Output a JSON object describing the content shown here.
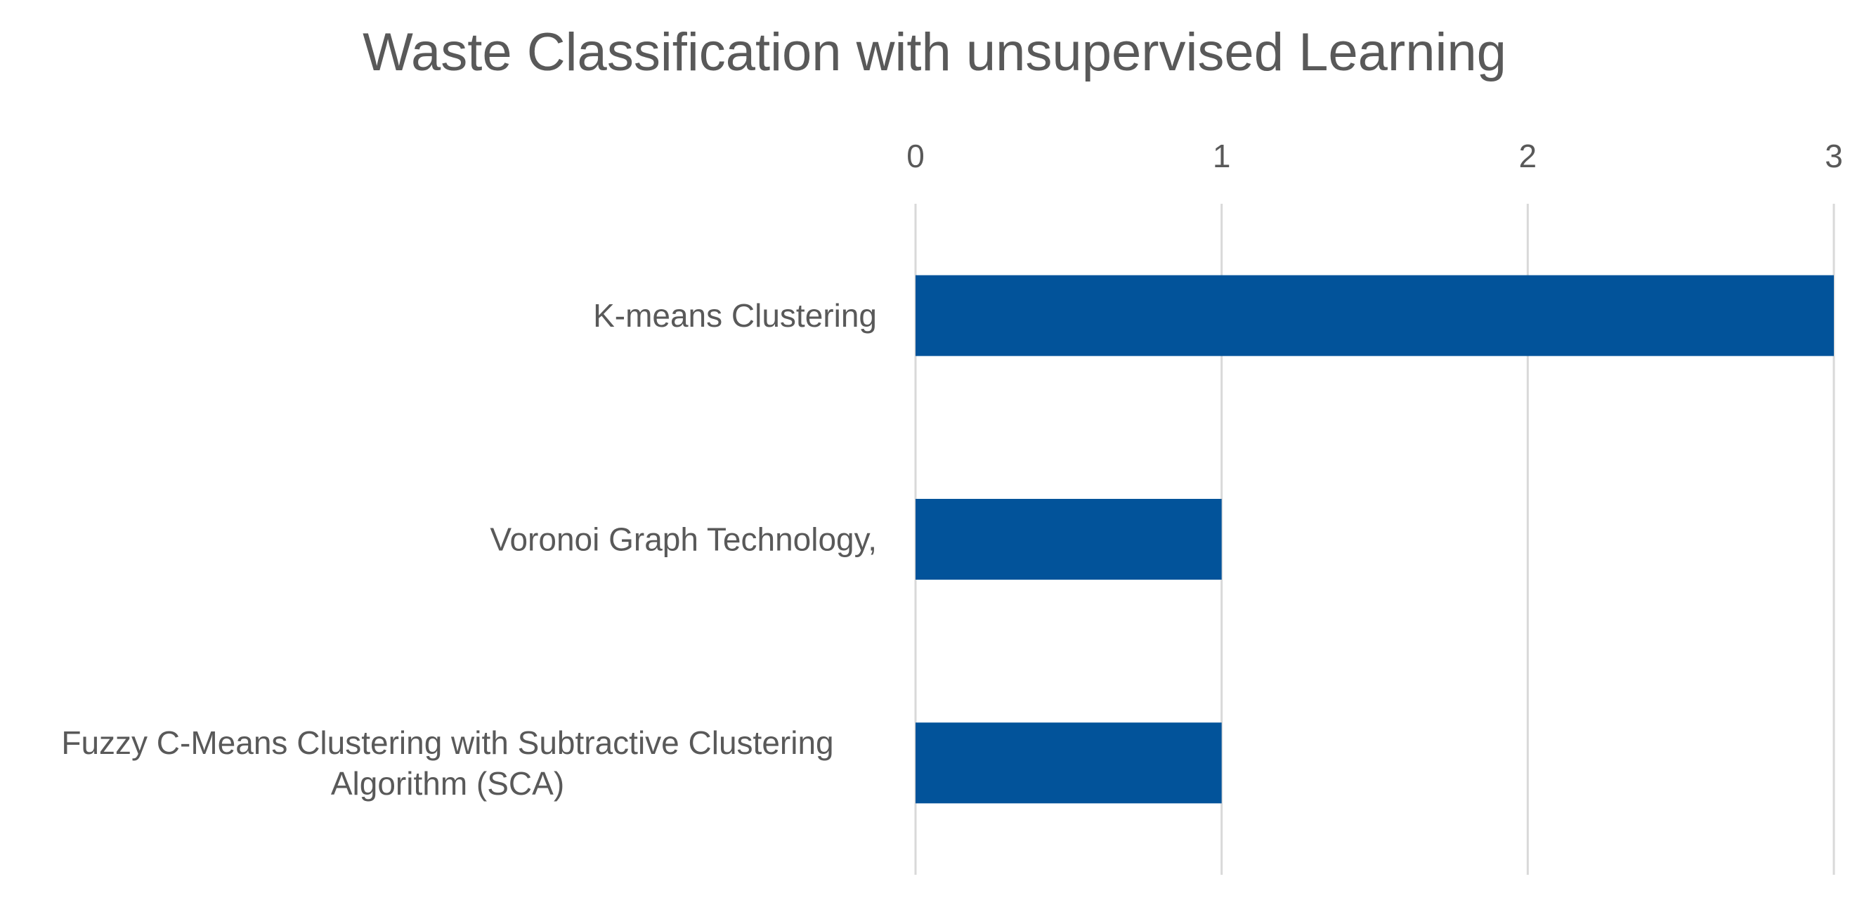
{
  "chart_data": {
    "type": "bar",
    "orientation": "horizontal",
    "title": "Waste Classification with unsupervised Learning",
    "categories": [
      [
        "K-means Clustering"
      ],
      [
        "Voronoi Graph Technology,"
      ],
      [
        "Fuzzy C-Means Clustering with Subtractive Clustering",
        "Algorithm (SCA)"
      ]
    ],
    "values": [
      3,
      1,
      1
    ],
    "xlim": [
      0,
      3
    ],
    "x_ticks": [
      "0",
      "1",
      "2",
      "3"
    ],
    "x_axis_position": "top",
    "grid": true,
    "legend": "none",
    "colors": {
      "bar": "#02539A",
      "grid": "#D9D9D9",
      "text": "#595959"
    }
  }
}
